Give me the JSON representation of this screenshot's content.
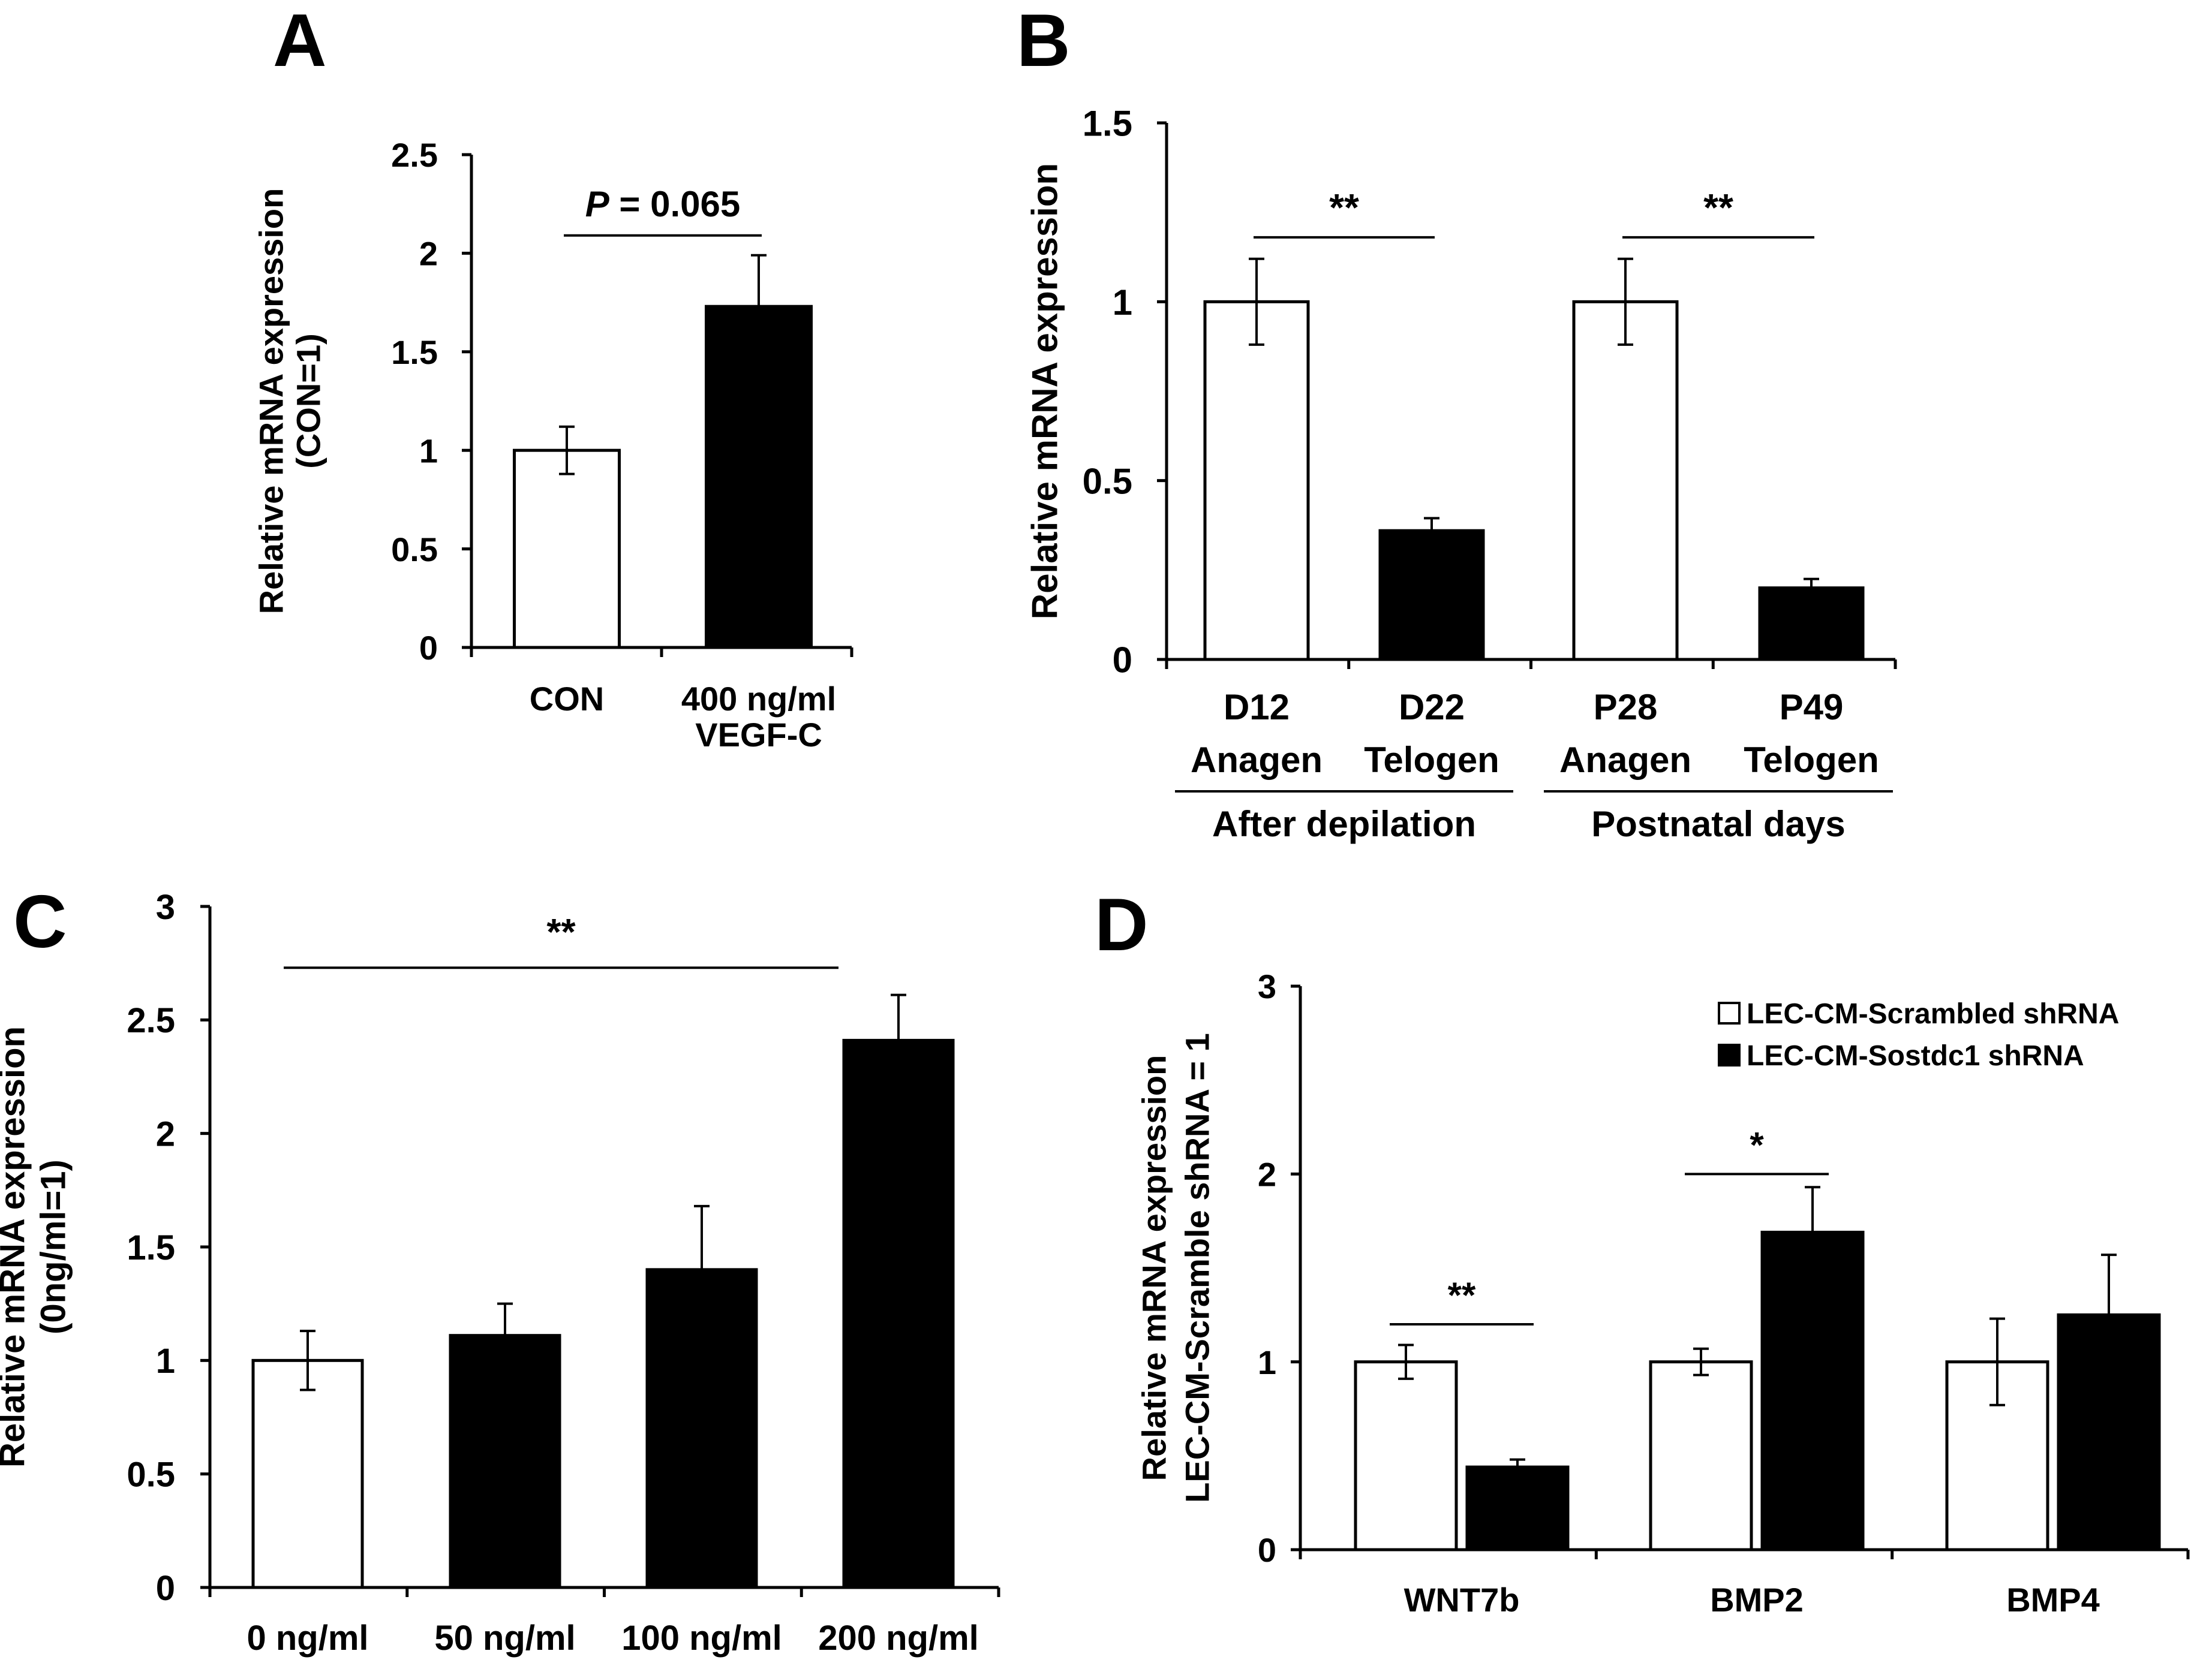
{
  "colors": {
    "open_bar": "#ffffff",
    "filled_bar": "#000000",
    "ink": "#000000"
  },
  "chart_data": [
    {
      "panel": "A",
      "type": "bar",
      "ylabel_lines": [
        "Relative mRNA expression",
        "(CON=1)"
      ],
      "ylim": [
        0,
        2.5
      ],
      "ticks": [
        "0",
        "0.5",
        "1",
        "1.5",
        "2",
        "2.5"
      ],
      "categories": [
        [
          "CON"
        ],
        [
          "400 ng/ml",
          "VEGF-C"
        ]
      ],
      "values": [
        1.0,
        1.73
      ],
      "errors": [
        0.12,
        0.26
      ],
      "fills": [
        "open",
        "filled"
      ],
      "significance": [
        {
          "from": 0,
          "to": 1,
          "y": 2.09,
          "label_prefix": "P",
          "label_rest": " = 0.065"
        }
      ]
    },
    {
      "panel": "B",
      "type": "bar",
      "ylabel_lines": [
        "Relative mRNA expression"
      ],
      "ylim": [
        0,
        1.5
      ],
      "ticks": [
        "0",
        "0.5",
        "1",
        "1.5"
      ],
      "categories": [
        [
          "D12",
          "Anagen"
        ],
        [
          "D22",
          "Telogen"
        ],
        [
          "P28",
          "Anagen"
        ],
        [
          "P49",
          "Telogen"
        ]
      ],
      "values": [
        1.0,
        0.36,
        1.0,
        0.2
      ],
      "errors": [
        0.12,
        0.035,
        0.12,
        0.025
      ],
      "fills": [
        "open",
        "filled",
        "open",
        "filled"
      ],
      "groups": [
        {
          "label": "After depilation",
          "from": 0,
          "to": 1
        },
        {
          "label": "Postnatal days",
          "from": 2,
          "to": 3
        }
      ],
      "significance": [
        {
          "from": 0,
          "to": 1,
          "y": 1.18,
          "label": "**"
        },
        {
          "from": 2,
          "to": 3,
          "y": 1.18,
          "label": "**"
        }
      ]
    },
    {
      "panel": "C",
      "type": "bar",
      "ylabel_lines": [
        "Relative mRNA expression",
        "(0ng/ml=1)"
      ],
      "ylim": [
        0,
        3
      ],
      "ticks": [
        "0",
        "0.5",
        "1",
        "1.5",
        "2",
        "2.5",
        "3"
      ],
      "categories": [
        [
          "0 ng/ml"
        ],
        [
          "50 ng/ml"
        ],
        [
          "100 ng/ml"
        ],
        [
          "200 ng/ml"
        ]
      ],
      "values": [
        1.0,
        1.11,
        1.4,
        2.41
      ],
      "errors": [
        0.13,
        0.14,
        0.28,
        0.2
      ],
      "fills": [
        "open",
        "filled",
        "filled",
        "filled"
      ],
      "significance": [
        {
          "from": 0,
          "to": 3,
          "y": 2.73,
          "label": "**"
        }
      ]
    },
    {
      "panel": "D",
      "type": "bar",
      "ylabel_lines": [
        "Relative mRNA expression",
        "LEC-CM-Scramble shRNA = 1"
      ],
      "ylim": [
        0,
        3
      ],
      "ticks": [
        "0",
        "1",
        "2",
        "3"
      ],
      "categories": [
        [
          "WNT7b"
        ],
        [
          "BMP2"
        ],
        [
          "BMP4"
        ]
      ],
      "series": [
        {
          "name": "LEC-CM-Scrambled shRNA",
          "fill": "open",
          "values": [
            1.0,
            1.0,
            1.0
          ],
          "errors": [
            0.09,
            0.07,
            0.23
          ]
        },
        {
          "name": "LEC-CM-Sostdc1 shRNA",
          "fill": "filled",
          "values": [
            0.44,
            1.69,
            1.25
          ],
          "errors": [
            0.04,
            0.24,
            0.32
          ]
        }
      ],
      "legend_position": "top-right",
      "significance": [
        {
          "group": 0,
          "y": 1.2,
          "label": "**"
        },
        {
          "group": 1,
          "y": 2.0,
          "label": "*"
        }
      ]
    }
  ]
}
